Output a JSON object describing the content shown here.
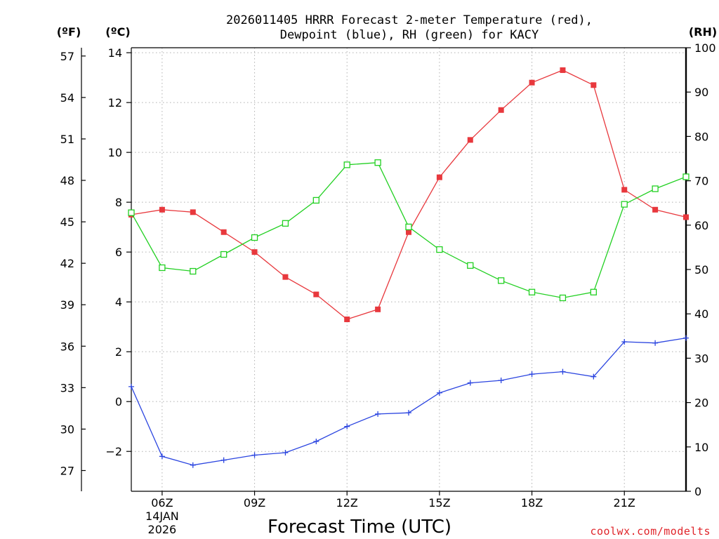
{
  "title": {
    "line1": "2026011405 HRRR Forecast 2-meter Temperature (red),",
    "line2": "Dewpoint (blue), RH (green) for KACY"
  },
  "credit": "coolwx.com/modelts",
  "chart_data": {
    "type": "line",
    "title": "2026011405 HRRR Forecast 2-meter Temperature (red), Dewpoint (blue), RH (green) for KACY",
    "xlabel": "Forecast Time (UTC)",
    "x_hours": [
      5,
      6,
      7,
      8,
      9,
      10,
      11,
      12,
      13,
      14,
      15,
      16,
      17,
      18,
      19,
      20,
      21,
      22,
      23
    ],
    "xlim": [
      5,
      23
    ],
    "x_ticks": [
      {
        "hour": 6,
        "label": "06Z",
        "sub1": "14JAN",
        "sub2": "2026"
      },
      {
        "hour": 9,
        "label": "09Z"
      },
      {
        "hour": 12,
        "label": "12Z"
      },
      {
        "hour": 15,
        "label": "15Z"
      },
      {
        "hour": 18,
        "label": "18Z"
      },
      {
        "hour": 21,
        "label": "21Z"
      }
    ],
    "axes": {
      "celsius": {
        "unit_label": "(ºC)",
        "range": [
          -3.6,
          14.2
        ],
        "ticks": [
          -2,
          0,
          2,
          4,
          6,
          8,
          10,
          12,
          14
        ],
        "tick_labels": [
          "−2",
          "0",
          "2",
          "4",
          "6",
          "8",
          "10",
          "12",
          "14"
        ]
      },
      "fahrenheit": {
        "unit_label": "(ºF)",
        "range": [
          25.5,
          57.6
        ],
        "ticks": [
          27,
          30,
          33,
          36,
          39,
          42,
          45,
          48,
          51,
          54,
          57
        ],
        "tick_labels": [
          "27",
          "30",
          "33",
          "36",
          "39",
          "42",
          "45",
          "48",
          "51",
          "54",
          "57"
        ]
      },
      "rh": {
        "unit_label": "(RH)",
        "range": [
          0,
          100
        ],
        "ticks": [
          0,
          10,
          20,
          30,
          40,
          50,
          60,
          70,
          80,
          90,
          100
        ],
        "tick_labels": [
          "0",
          "10",
          "20",
          "30",
          "40",
          "50",
          "60",
          "70",
          "80",
          "90",
          "100"
        ]
      }
    },
    "grid": true,
    "series": [
      {
        "name": "Temperature",
        "axis": "celsius",
        "color": "#e8383d",
        "marker": "filled-square",
        "values": [
          7.5,
          7.7,
          7.6,
          6.8,
          6.0,
          5.0,
          4.3,
          3.3,
          3.7,
          6.8,
          9.0,
          10.5,
          11.7,
          12.8,
          13.3,
          12.7,
          8.5,
          7.7,
          7.4
        ]
      },
      {
        "name": "Dewpoint",
        "axis": "celsius",
        "color": "#2b45e0",
        "marker": "plus",
        "values": [
          0.6,
          -2.2,
          -2.55,
          -2.35,
          -2.15,
          -2.05,
          -1.6,
          -1.0,
          -0.5,
          -0.45,
          0.35,
          0.75,
          0.85,
          1.1,
          1.2,
          1.0,
          2.4,
          2.35,
          2.55
        ]
      },
      {
        "name": "RH",
        "axis": "rh",
        "color": "#22d022",
        "marker": "open-square",
        "values": [
          62.8,
          50.4,
          49.6,
          53.4,
          57.2,
          60.4,
          65.6,
          73.6,
          74.1,
          59.6,
          54.5,
          50.9,
          47.5,
          44.9,
          43.6,
          44.9,
          64.7,
          68.2,
          70.9
        ]
      }
    ]
  }
}
